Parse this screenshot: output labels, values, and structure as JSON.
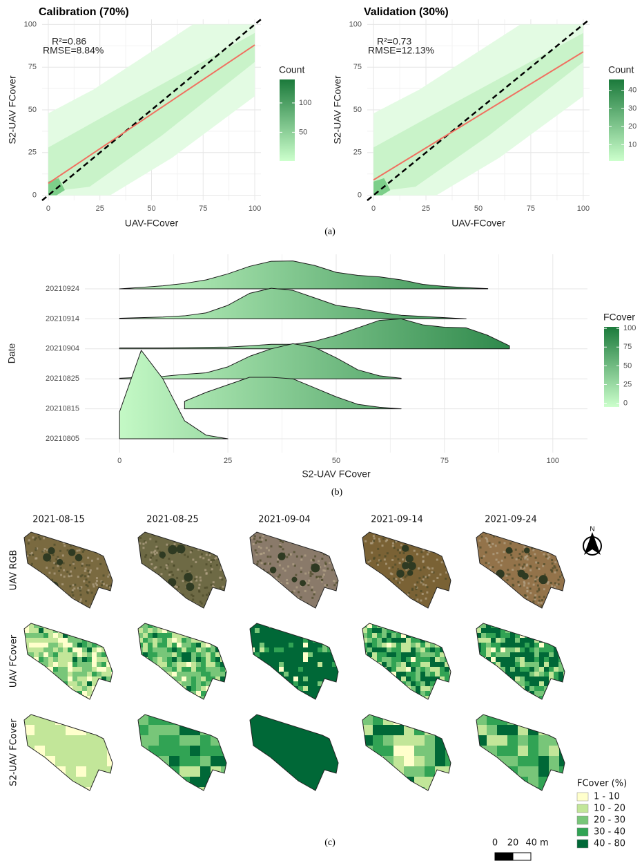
{
  "chart_data": [
    {
      "type": "bin2d",
      "title": "Calibration (70%)",
      "xlabel": "UAV-FCover",
      "ylabel": "S2-UAV FCover",
      "annotations": [
        "R²=0.86",
        "RMSE=8.84%"
      ],
      "xlim": [
        -3,
        103
      ],
      "ylim": [
        -3,
        103
      ],
      "xticks": [
        0,
        25,
        50,
        75,
        100
      ],
      "yticks": [
        0,
        25,
        50,
        75,
        100
      ],
      "grid": true,
      "fit_line": {
        "color": "#f07060",
        "x": [
          0,
          100
        ],
        "y": [
          7,
          88
        ]
      },
      "colorbar": {
        "title": "Count",
        "lim": [
          1,
          140
        ],
        "ticks": [
          50,
          100
        ],
        "colors": [
          "#ccffcc",
          "#1b7a3b"
        ]
      }
    },
    {
      "type": "bin2d",
      "title": "Validation (30%)",
      "xlabel": "UAV-FCover",
      "ylabel": "S2-UAV FCover",
      "annotations": [
        "R²=0.73",
        "RMSE=12.13%"
      ],
      "xlim": [
        -3,
        103
      ],
      "ylim": [
        -3,
        103
      ],
      "xticks": [
        0,
        25,
        50,
        75,
        100
      ],
      "yticks": [
        0,
        25,
        50,
        75,
        100
      ],
      "grid": true,
      "fit_line": {
        "color": "#f07060",
        "x": [
          0,
          100
        ],
        "y": [
          9,
          84
        ]
      },
      "colorbar": {
        "title": "Count",
        "lim": [
          1,
          46
        ],
        "ticks": [
          10,
          20,
          30,
          40
        ],
        "colors": [
          "#ccffcc",
          "#1b7a3b"
        ]
      }
    },
    {
      "type": "ridgeline",
      "xlabel": "S2-UAV FCover",
      "ylabel": "Date",
      "xlim": [
        -8,
        108
      ],
      "xticks": [
        0,
        25,
        50,
        75,
        100
      ],
      "grid": true,
      "x": [
        -5,
        0,
        5,
        10,
        15,
        20,
        25,
        30,
        35,
        40,
        45,
        50,
        55,
        60,
        65,
        70,
        75,
        80,
        85,
        90,
        95
      ],
      "series": [
        {
          "name": "20210924",
          "values": [
            null,
            0,
            0.05,
            0.1,
            0.18,
            0.3,
            0.5,
            0.75,
            0.92,
            0.93,
            0.78,
            0.55,
            0.45,
            0.4,
            0.3,
            0.15,
            0.08,
            0.04,
            0.01,
            null,
            null
          ]
        },
        {
          "name": "20210914",
          "values": [
            null,
            0.02,
            0.04,
            0.06,
            0.1,
            0.2,
            0.45,
            0.85,
            1.02,
            0.95,
            0.7,
            0.45,
            0.35,
            0.22,
            0.12,
            0.08,
            0.04,
            0,
            null,
            null,
            null
          ]
        },
        {
          "name": "20210904",
          "values": [
            null,
            0.03,
            0.03,
            0.03,
            0.04,
            0.05,
            0.06,
            0.1,
            0.15,
            0.15,
            0.25,
            0.45,
            0.7,
            0.95,
            1.0,
            0.8,
            0.72,
            0.7,
            0.45,
            0.1,
            null
          ]
        },
        {
          "name": "20210825",
          "values": [
            null,
            0.02,
            0.05,
            0.08,
            0.15,
            0.2,
            0.4,
            0.75,
            1.0,
            1.17,
            1.05,
            0.7,
            0.3,
            0.1,
            0.02,
            null,
            null,
            null,
            null,
            null,
            null
          ]
        },
        {
          "name": "20210815",
          "values": [
            null,
            null,
            null,
            null,
            0.25,
            0.55,
            0.8,
            1.05,
            1.05,
            1.0,
            0.7,
            0.4,
            0.15,
            0.05,
            0,
            null,
            null,
            null,
            null,
            null,
            null
          ]
        },
        {
          "name": "20210805",
          "values": [
            null,
            0.9,
            2.95,
            2.0,
            0.6,
            0.12,
            0,
            null,
            null,
            null,
            null,
            null,
            null,
            null,
            null,
            null,
            null,
            null,
            null,
            null,
            null
          ]
        }
      ],
      "colorbar": {
        "title": "FCover",
        "lim": [
          -5,
          102
        ],
        "ticks": [
          0,
          25,
          50,
          75,
          100
        ],
        "colors": [
          "#ccffcc",
          "#1b7a3b"
        ]
      }
    }
  ],
  "captions": [
    "(a)",
    "(b)",
    "(c)"
  ],
  "maps": {
    "dates": [
      "2021-08-15",
      "2021-08-25",
      "2021-09-04",
      "2021-09-14",
      "2021-09-24"
    ],
    "rows": [
      "UAV RGB",
      "UAV FCover",
      "S2-UAV FCover"
    ],
    "legend": {
      "title": "FCover (%)",
      "classes": [
        {
          "label": "1 - 10",
          "color": "#ffffcc"
        },
        {
          "label": "10 - 20",
          "color": "#c2e699"
        },
        {
          "label": "20 - 30",
          "color": "#78c679"
        },
        {
          "label": "30 - 40",
          "color": "#31a354"
        },
        {
          "label": "40 - 80",
          "color": "#006837"
        }
      ]
    },
    "north": "N",
    "scale_bar": [
      "0",
      "20",
      "40 m"
    ]
  }
}
